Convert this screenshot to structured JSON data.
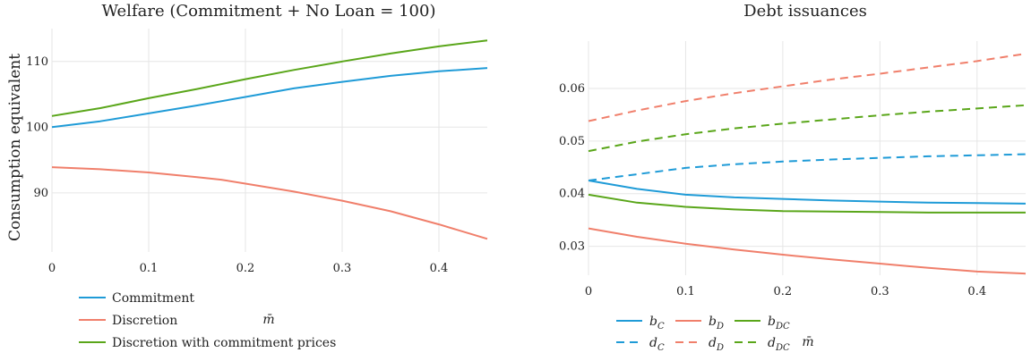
{
  "chart_data": [
    {
      "type": "line",
      "title": "Welfare (Commitment + No Loan = 100)",
      "xlabel": "m̄",
      "ylabel": "Consumption equivalent",
      "xlim": [
        0,
        0.45
      ],
      "ylim": [
        81,
        115
      ],
      "x_ticks": [
        "0",
        "0.1",
        "0.2",
        "0.3",
        "0.4"
      ],
      "y_ticks": [
        "90",
        "100",
        "110"
      ],
      "grid": true,
      "legend_position": "bottom-left",
      "series": [
        {
          "name": "Commitment",
          "color": "#1f9bd7",
          "dash": false,
          "x": [
            0,
            0.05,
            0.1,
            0.15,
            0.2,
            0.25,
            0.3,
            0.35,
            0.4,
            0.45
          ],
          "y": [
            100.0,
            100.9,
            102.1,
            103.3,
            104.6,
            105.9,
            106.9,
            107.8,
            108.5,
            109.0
          ]
        },
        {
          "name": "Discretion",
          "color": "#f07f6b",
          "dash": false,
          "x": [
            0,
            0.05,
            0.1,
            0.15,
            0.175,
            0.2,
            0.25,
            0.3,
            0.35,
            0.4,
            0.45
          ],
          "y": [
            93.9,
            93.6,
            93.1,
            92.4,
            92.0,
            91.4,
            90.2,
            88.8,
            87.2,
            85.2,
            83.0
          ]
        },
        {
          "name": "Discretion with commitment prices",
          "color": "#5aa61a",
          "dash": false,
          "x": [
            0,
            0.05,
            0.1,
            0.15,
            0.2,
            0.25,
            0.3,
            0.35,
            0.4,
            0.45
          ],
          "y": [
            101.7,
            102.9,
            104.4,
            105.8,
            107.3,
            108.7,
            110.0,
            111.2,
            112.3,
            113.2
          ]
        }
      ]
    },
    {
      "type": "line",
      "title": "Debt issuances",
      "xlabel": "m̄",
      "ylabel": "",
      "xlim": [
        0,
        0.45
      ],
      "ylim": [
        0.0245,
        0.069
      ],
      "x_ticks": [
        "0",
        "0.1",
        "0.2",
        "0.3",
        "0.4"
      ],
      "y_ticks": [
        "0.03",
        "0.04",
        "0.05",
        "0.06"
      ],
      "grid": true,
      "legend_position": "bottom-left",
      "series": [
        {
          "name": "b",
          "sub": "C",
          "color": "#1f9bd7",
          "dash": false,
          "x": [
            0,
            0.05,
            0.1,
            0.15,
            0.2,
            0.25,
            0.3,
            0.35,
            0.4,
            0.45
          ],
          "y": [
            0.0425,
            0.0409,
            0.0398,
            0.0393,
            0.039,
            0.0387,
            0.0385,
            0.0383,
            0.0382,
            0.0381
          ]
        },
        {
          "name": "b",
          "sub": "D",
          "color": "#f07f6b",
          "dash": false,
          "x": [
            0,
            0.05,
            0.1,
            0.15,
            0.2,
            0.25,
            0.3,
            0.35,
            0.4,
            0.45
          ],
          "y": [
            0.0334,
            0.0318,
            0.0305,
            0.0294,
            0.0284,
            0.0275,
            0.0267,
            0.0259,
            0.0252,
            0.0248
          ]
        },
        {
          "name": "b",
          "sub": "DC",
          "color": "#5aa61a",
          "dash": false,
          "x": [
            0,
            0.05,
            0.1,
            0.15,
            0.2,
            0.25,
            0.3,
            0.35,
            0.4,
            0.45
          ],
          "y": [
            0.0398,
            0.0383,
            0.0375,
            0.037,
            0.0367,
            0.0366,
            0.0365,
            0.0364,
            0.0364,
            0.0364
          ]
        },
        {
          "name": "d",
          "sub": "C",
          "color": "#1f9bd7",
          "dash": true,
          "x": [
            0,
            0.05,
            0.1,
            0.15,
            0.2,
            0.25,
            0.3,
            0.35,
            0.4,
            0.45
          ],
          "y": [
            0.0425,
            0.0437,
            0.0449,
            0.0456,
            0.0461,
            0.0465,
            0.0468,
            0.0471,
            0.0473,
            0.0475
          ]
        },
        {
          "name": "d",
          "sub": "D",
          "color": "#f07f6b",
          "dash": true,
          "x": [
            0,
            0.05,
            0.1,
            0.15,
            0.2,
            0.25,
            0.3,
            0.35,
            0.4,
            0.45
          ],
          "y": [
            0.0538,
            0.0558,
            0.0576,
            0.0591,
            0.0604,
            0.0617,
            0.0628,
            0.064,
            0.0652,
            0.0666
          ]
        },
        {
          "name": "d",
          "sub": "DC",
          "color": "#5aa61a",
          "dash": true,
          "x": [
            0,
            0.05,
            0.1,
            0.15,
            0.2,
            0.25,
            0.3,
            0.35,
            0.4,
            0.45
          ],
          "y": [
            0.0481,
            0.0499,
            0.0513,
            0.0524,
            0.0533,
            0.0541,
            0.0549,
            0.0556,
            0.0562,
            0.0568
          ]
        }
      ]
    }
  ]
}
